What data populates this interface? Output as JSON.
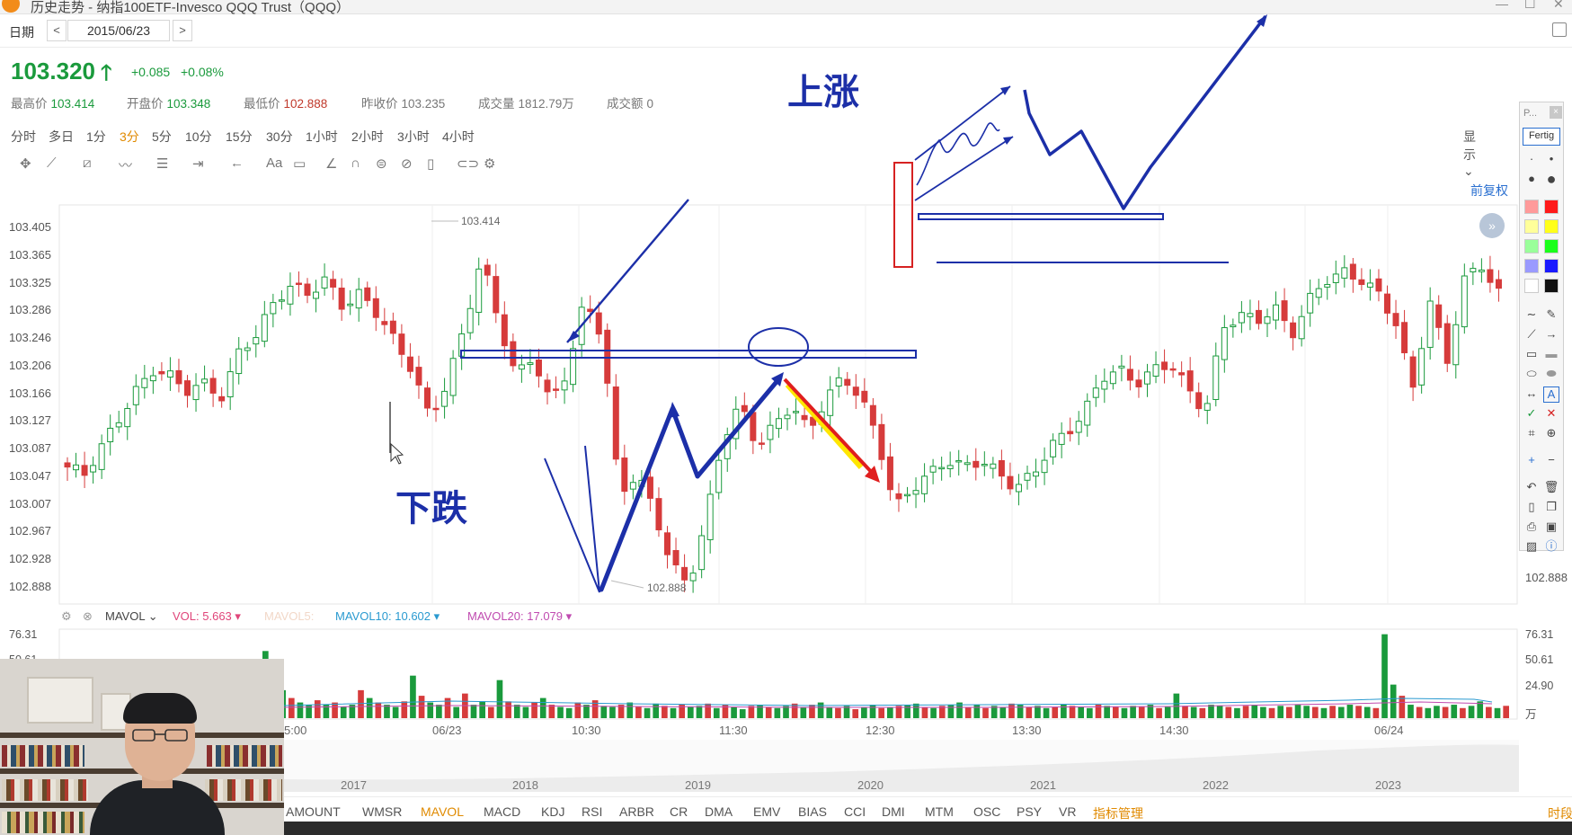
{
  "window": {
    "title": "历史走势 - 纳指100ETF-Invesco QQQ Trust（QQQ）"
  },
  "datebar": {
    "label": "日期",
    "prev": "<",
    "date": "2015/06/23",
    "next": ">"
  },
  "quote": {
    "price": "103.320",
    "arrow": "🡑",
    "change": "+0.085",
    "change_pct": "+0.08%",
    "stats": [
      {
        "label": "最高价",
        "value": "103.414",
        "color": "#1a9a3c"
      },
      {
        "label": "开盘价",
        "value": "103.348",
        "color": "#1a9a3c"
      },
      {
        "label": "最低价",
        "value": "102.888",
        "color": "#c0392b"
      },
      {
        "label": "昨收价",
        "value": "103.235",
        "color": "#777777"
      },
      {
        "label": "成交量",
        "value": "1812.79万",
        "color": "#777777"
      },
      {
        "label": "成交额",
        "value": "0",
        "color": "#777777"
      }
    ]
  },
  "periods": [
    "分时",
    "多日",
    "1分",
    "3分",
    "5分",
    "10分",
    "15分",
    "30分",
    "1小时",
    "2小时",
    "3小时",
    "4小时"
  ],
  "active_period": "3分",
  "display_label": "显示",
  "adjust_label": "前复权",
  "collapse_icon": "»",
  "colors": {
    "up": "#1a9a3c",
    "down": "#d63b3b",
    "annotation": "#1c2fa8",
    "accent": "#e08a00"
  },
  "drawing_tools": [
    "move-icon",
    "line-icon",
    "channel-icon",
    "wave-icon",
    "fib-icon",
    "measure-icon",
    "arrow-icon",
    "text-icon",
    "comment-icon",
    "ruler-icon",
    "magnet-icon",
    "lock-icon",
    "hide-icon",
    "trash-icon",
    "link-icon",
    "settings-icon"
  ],
  "chart_data": {
    "type": "candlestick",
    "y_ticks": [
      "103.405",
      "103.365",
      "103.325",
      "103.286",
      "103.246",
      "103.206",
      "103.166",
      "103.127",
      "103.087",
      "103.047",
      "103.007",
      "102.967",
      "102.928",
      "102.888"
    ],
    "y_range": [
      102.868,
      103.445
    ],
    "high_label": "103.414",
    "low_label": "102.888",
    "right_label": "102.888",
    "x_ticks": [
      "5:00",
      "06/23",
      "10:30",
      "11:30",
      "12:30",
      "13:30",
      "14:30",
      "06/24"
    ],
    "close_path": [
      103.06,
      103.05,
      103.09,
      103.13,
      103.17,
      103.2,
      103.19,
      103.17,
      103.18,
      103.16,
      103.23,
      103.25,
      103.3,
      103.32,
      103.31,
      103.33,
      103.29,
      103.31,
      103.28,
      103.24,
      103.2,
      103.13,
      103.18,
      103.26,
      103.36,
      103.27,
      103.19,
      103.22,
      103.15,
      103.2,
      103.3,
      103.25,
      103.02,
      103.05,
      103.0,
      102.92,
      102.89,
      102.98,
      103.1,
      103.15,
      103.09,
      103.12,
      103.15,
      103.11,
      103.16,
      103.19,
      103.16,
      103.1,
      103.0,
      103.03,
      103.05,
      103.07,
      103.06,
      103.07,
      103.05,
      103.03,
      103.05,
      103.09,
      103.11,
      103.14,
      103.19,
      103.2,
      103.18,
      103.2,
      103.21,
      103.17,
      103.14,
      103.26,
      103.28,
      103.27,
      103.29,
      103.25,
      103.3,
      103.33,
      103.34,
      103.33,
      103.31,
      103.27,
      103.17,
      103.3,
      103.21,
      103.33,
      103.35,
      103.31
    ],
    "volume": {
      "label": "MAVOL",
      "vol_label": "VOL:",
      "vol_value": "5.663",
      "mavol5_label": "MAVOL5:",
      "mavol10_label": "MAVOL10:",
      "mavol10_value": "10.602",
      "mavol20_label": "MAVOL20:",
      "mavol20_value": "17.079",
      "y_ticks": [
        "76.31",
        "50.61",
        "24.90",
        "万"
      ],
      "max": 76.31,
      "values": [
        8,
        10,
        12,
        9,
        7,
        11,
        14,
        9,
        10,
        8,
        12,
        15,
        10,
        12,
        9,
        11,
        13,
        10,
        9,
        14,
        12,
        10,
        30,
        60,
        35,
        25,
        18,
        14,
        12,
        16,
        12,
        14,
        10,
        12,
        25,
        18,
        14,
        12,
        10,
        15,
        38,
        20,
        14,
        12,
        18,
        10,
        22,
        12,
        15,
        10,
        34,
        15,
        12,
        10,
        14,
        18,
        12,
        10,
        9,
        14,
        12,
        16,
        11,
        10,
        12,
        14,
        10,
        9,
        13,
        11,
        9,
        12,
        10,
        11,
        13,
        9,
        12,
        10,
        8,
        11,
        12,
        10,
        9,
        11,
        13,
        10,
        12,
        14,
        10,
        9,
        11,
        8,
        10,
        12,
        9,
        10,
        11,
        12,
        13,
        10,
        9,
        11,
        12,
        14,
        10,
        12,
        9,
        11,
        10,
        13,
        12,
        10,
        11,
        9,
        10,
        12,
        11,
        10,
        9,
        12,
        11,
        10,
        9,
        11,
        10,
        12,
        9,
        10,
        22,
        11,
        10,
        9,
        12,
        11,
        10,
        9,
        11,
        12,
        10,
        9,
        11,
        10,
        12,
        11,
        10,
        9,
        11,
        10,
        12,
        11,
        10,
        9,
        75,
        30,
        20,
        12,
        10,
        9,
        11,
        10,
        12,
        9,
        11,
        15,
        10,
        9,
        11
      ]
    },
    "navigator_years": [
      "2017",
      "2018",
      "2019",
      "2020",
      "2021",
      "2022",
      "2023"
    ]
  },
  "annotations": {
    "down_text": "下跌",
    "up_text": "上涨"
  },
  "indicator_tabs": [
    "AMOUNT",
    "WMSR",
    "MAVOL",
    "MACD",
    "KDJ",
    "RSI",
    "ARBR",
    "CR",
    "DMA",
    "EMV",
    "BIAS",
    "CCI",
    "DMI",
    "MTM",
    "OSC",
    "PSY",
    "VR",
    "指标管理"
  ],
  "active_tab": "MAVOL",
  "bottom_right_label": "时段",
  "draw_panel": {
    "title": "P...",
    "close": "×",
    "done": "Fertig",
    "swatches": [
      "#ff9a9a",
      "#ff1a1a",
      "#ffff9a",
      "#ffff1a",
      "#9aff9a",
      "#1aff1a",
      "#9a9aff",
      "#1a1aff",
      "#ffffff",
      "#111111"
    ]
  }
}
